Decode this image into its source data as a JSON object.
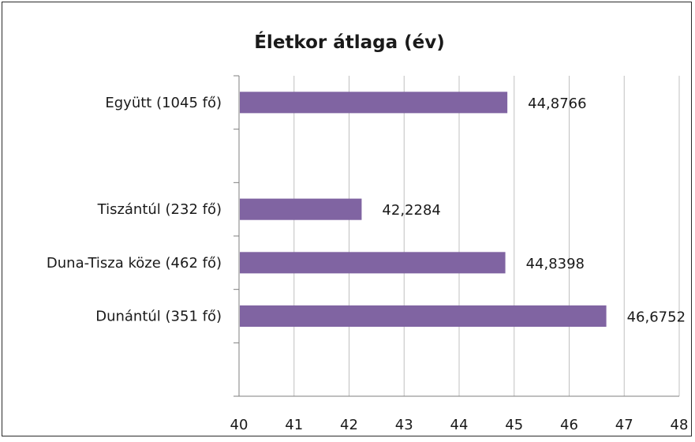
{
  "chart_data": {
    "type": "bar",
    "orientation": "horizontal",
    "title": "Életkor átlaga (év)",
    "categories": [
      "Együtt (1045 fő)",
      "",
      "Tiszántúl (232 fő)",
      "Duna-Tisza köze (462 fő)",
      "Dunántúl (351 fő)",
      ""
    ],
    "values": [
      44.8766,
      null,
      42.2284,
      44.8398,
      46.6752,
      null
    ],
    "data_labels": [
      "44,8766",
      "",
      "42,2284",
      "44,8398",
      "46,6752",
      ""
    ],
    "xlim": [
      40,
      48
    ],
    "xticks": [
      "40",
      "41",
      "42",
      "43",
      "44",
      "45",
      "46",
      "47",
      "48"
    ],
    "grid": "vertical",
    "legend": "none",
    "bar_color": "#8064a2",
    "grid_color": "#c0c0c0",
    "axis_color": "#7f7f7f"
  }
}
